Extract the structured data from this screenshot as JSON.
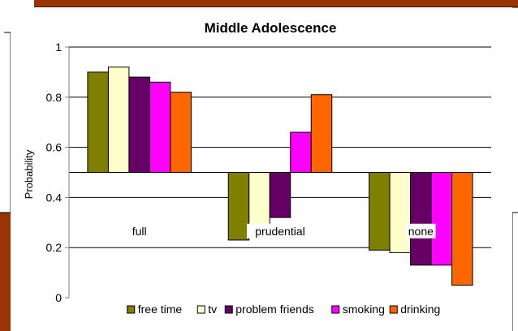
{
  "chart_data": {
    "type": "bar",
    "title": "Middle Adolescence",
    "xlabel": "",
    "ylabel": "Probability",
    "ylim": [
      0,
      1
    ],
    "yticks": [
      "0",
      "0.2",
      "0.4",
      "0.6",
      "0.8",
      "1"
    ],
    "baseline": 0.5,
    "grid": true,
    "legend_position": "bottom",
    "categories": [
      "full",
      "prudential",
      "none"
    ],
    "series": [
      {
        "name": "free time",
        "color": "#808000",
        "values": [
          0.9,
          0.23,
          0.19
        ]
      },
      {
        "name": "tv",
        "color": "#FFFFCC",
        "values": [
          0.92,
          0.28,
          0.18
        ]
      },
      {
        "name": "problem friends",
        "color": "#660066",
        "values": [
          0.88,
          0.32,
          0.13
        ]
      },
      {
        "name": "smoking",
        "color": "#FF00FF",
        "values": [
          0.86,
          0.66,
          0.13
        ]
      },
      {
        "name": "drinking",
        "color": "#FF6600",
        "values": [
          0.82,
          0.81,
          0.05
        ]
      }
    ]
  }
}
